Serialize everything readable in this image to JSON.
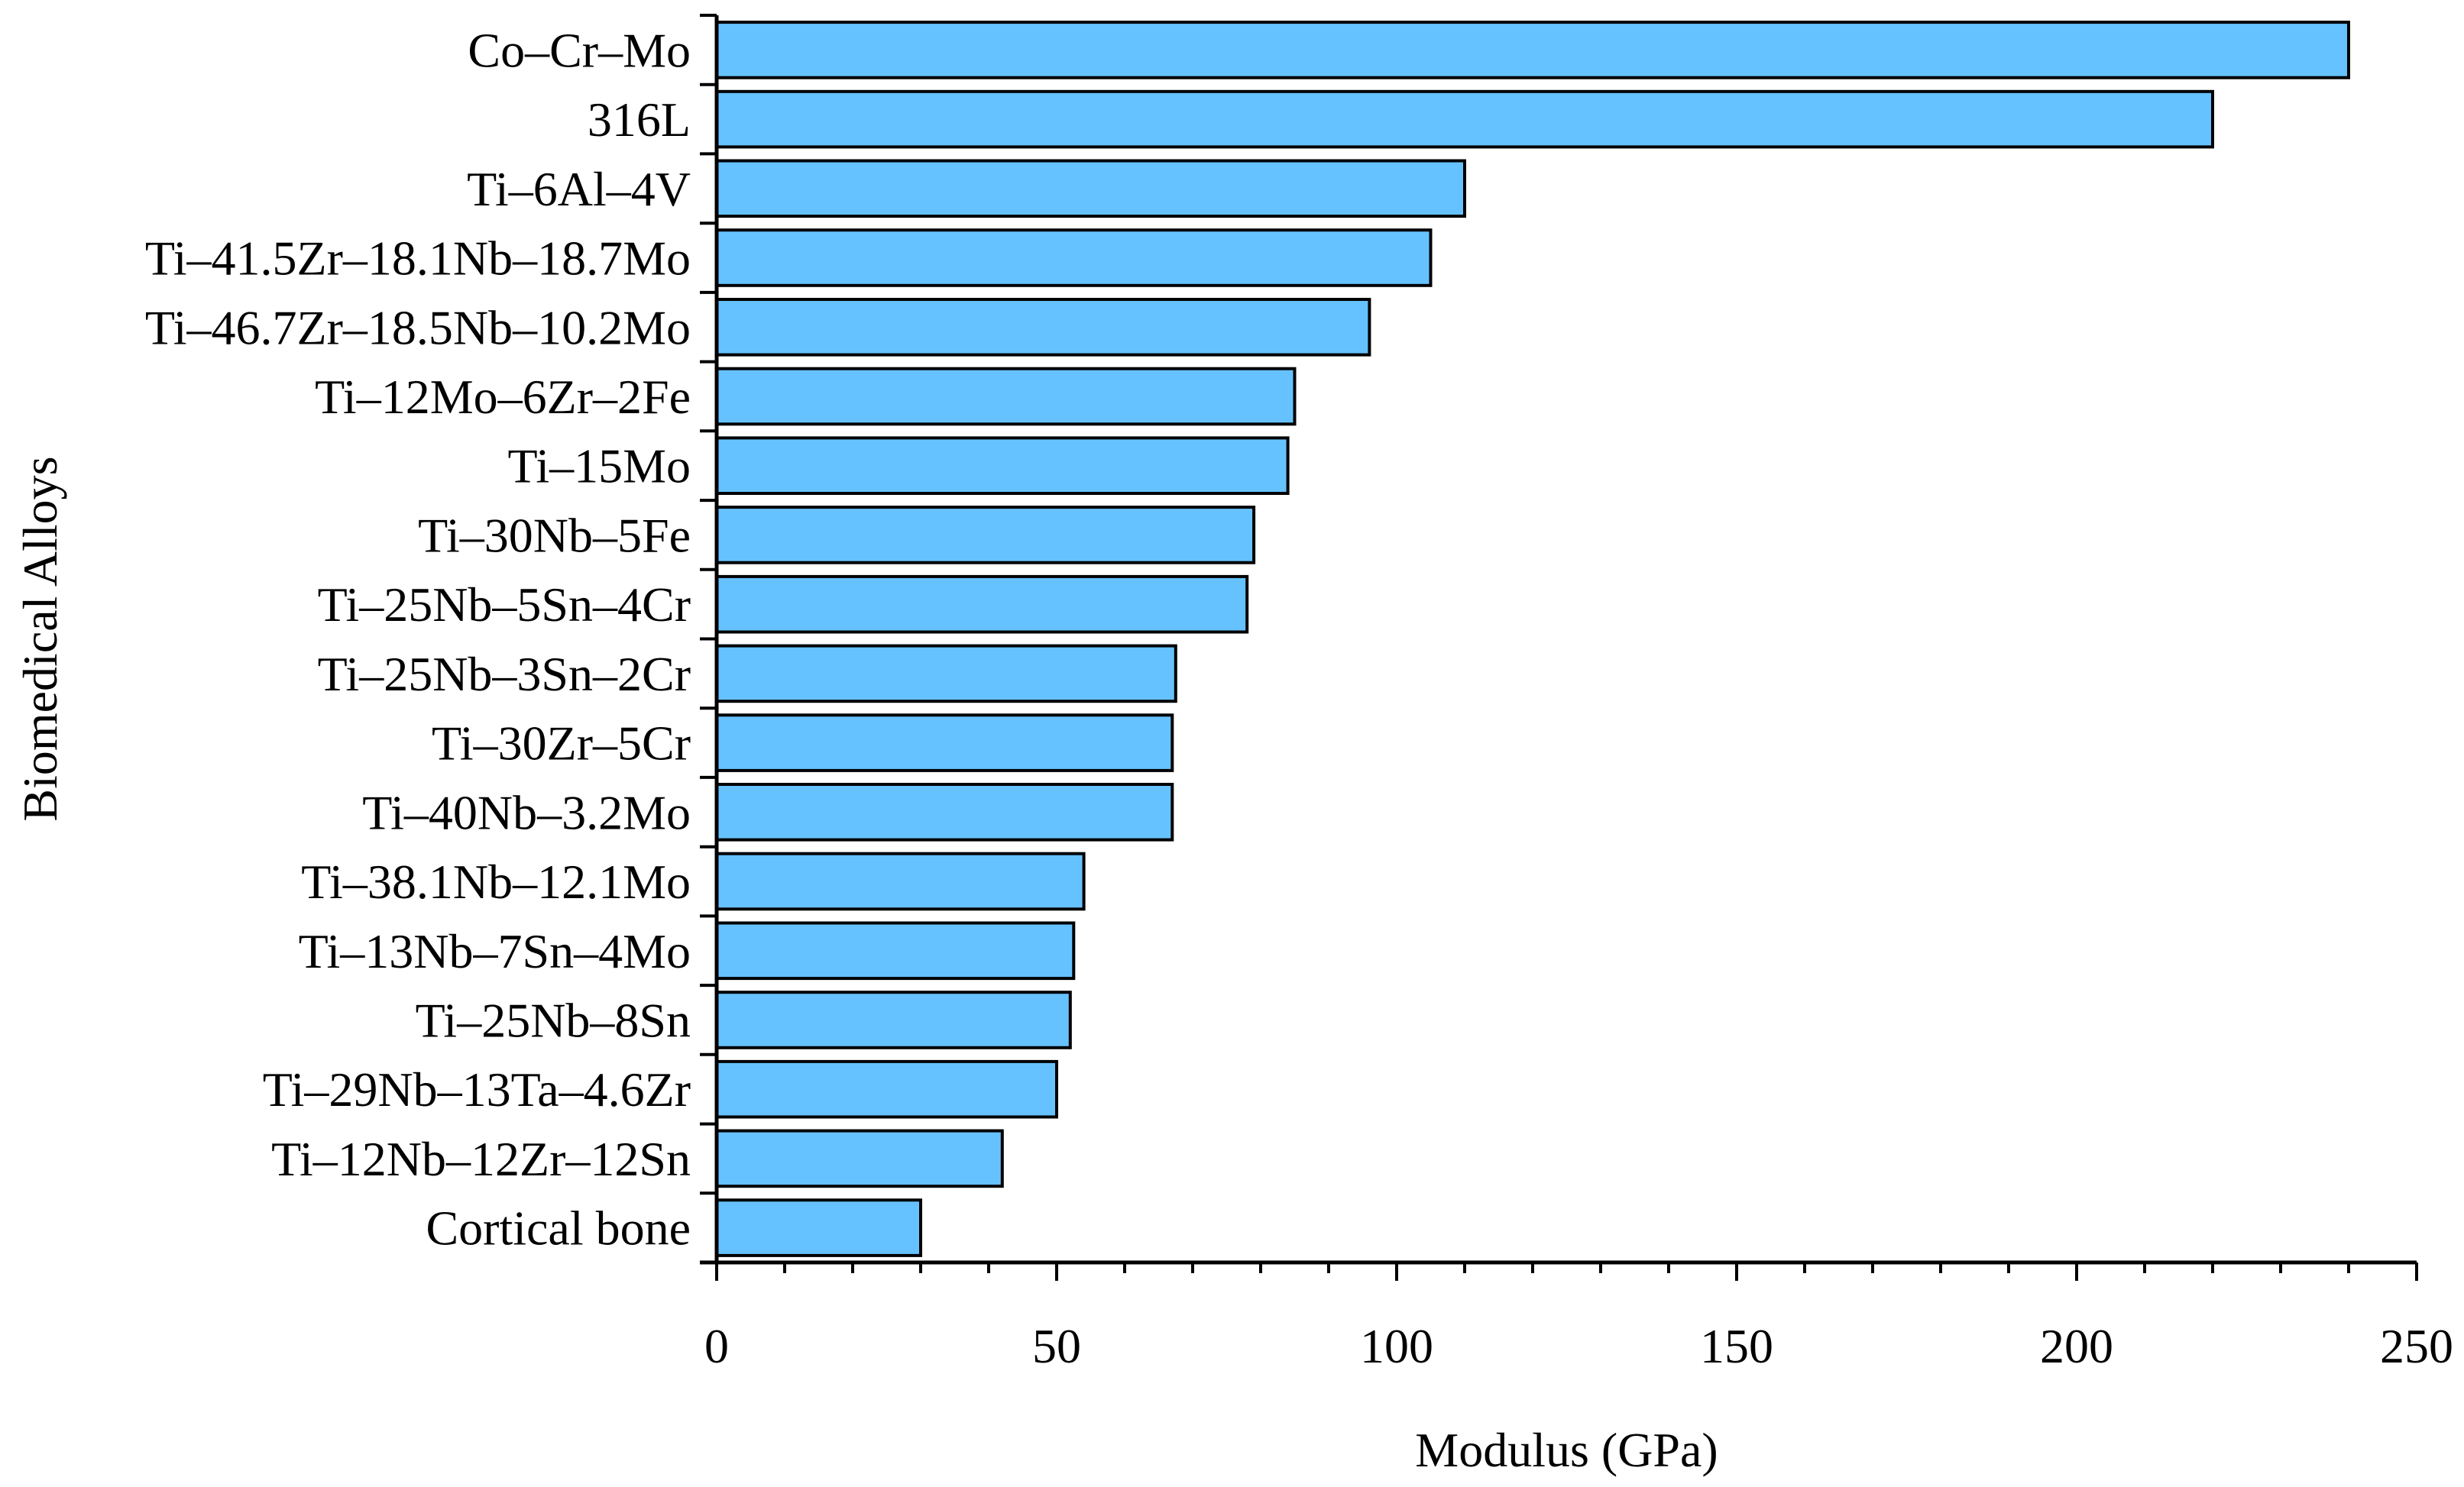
{
  "chart_data": {
    "type": "bar",
    "orientation": "horizontal",
    "title": "",
    "xlabel": "Modulus (GPa)",
    "ylabel": "Biomedical Alloys",
    "xlim": [
      0,
      250
    ],
    "xticks": [
      0,
      50,
      100,
      150,
      200,
      250
    ],
    "grid": false,
    "legend": "none",
    "bar_color": "#66c2ff",
    "bar_edge_color": "#000000",
    "categories": [
      "Co–Cr–Mo",
      "316L",
      "Ti–6Al–4V",
      "Ti–41.5Zr–18.1Nb–18.7Mo",
      "Ti–46.7Zr–18.5Nb–10.2Mo",
      "Ti–12Mo–6Zr–2Fe",
      "Ti–15Mo",
      "Ti–30Nb–5Fe",
      "Ti–25Nb–5Sn–4Cr",
      "Ti–25Nb–3Sn–2Cr",
      "Ti–30Zr–5Cr",
      "Ti–40Nb–3.2Mo",
      "Ti–38.1Nb–12.1Mo",
      "Ti–13Nb–7Sn–4Mo",
      "Ti–25Nb–8Sn",
      "Ti–29Nb–13Ta–4.6Zr",
      "Ti–12Nb–12Zr–12Sn",
      "Cortical bone"
    ],
    "values": [
      240,
      220,
      110,
      105,
      96,
      85,
      84,
      79,
      78,
      67.5,
      67,
      67,
      54,
      52.5,
      52,
      50,
      42,
      30
    ]
  }
}
